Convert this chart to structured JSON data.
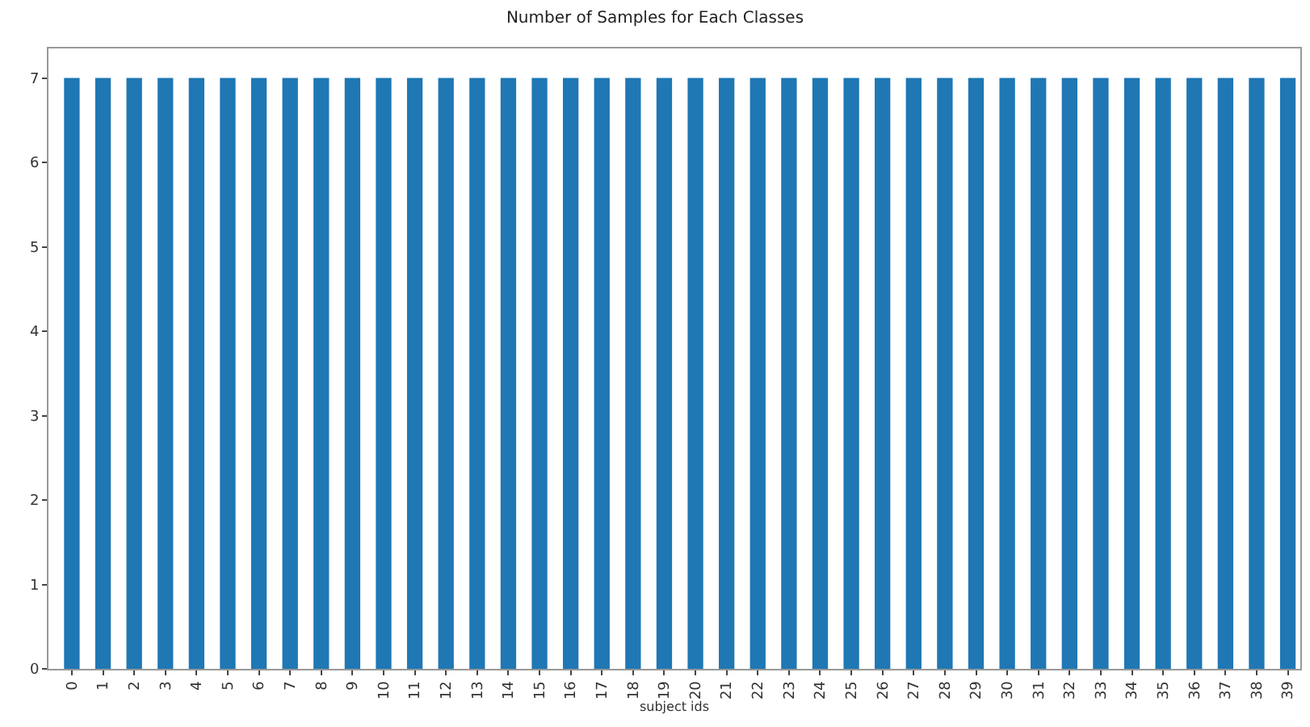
{
  "chart_data": {
    "type": "bar",
    "title": "Number of Samples for Each Classes",
    "xlabel": "subject ids",
    "categories": [
      "0",
      "1",
      "2",
      "3",
      "4",
      "5",
      "6",
      "7",
      "8",
      "9",
      "10",
      "11",
      "12",
      "13",
      "14",
      "15",
      "16",
      "17",
      "18",
      "19",
      "20",
      "21",
      "22",
      "23",
      "24",
      "25",
      "26",
      "27",
      "28",
      "29",
      "30",
      "31",
      "32",
      "33",
      "34",
      "35",
      "36",
      "37",
      "38",
      "39"
    ],
    "values": [
      7,
      7,
      7,
      7,
      7,
      7,
      7,
      7,
      7,
      7,
      7,
      7,
      7,
      7,
      7,
      7,
      7,
      7,
      7,
      7,
      7,
      7,
      7,
      7,
      7,
      7,
      7,
      7,
      7,
      7,
      7,
      7,
      7,
      7,
      7,
      7,
      7,
      7,
      7,
      7
    ],
    "color": "#1f77b4",
    "ylim": [
      0,
      7.35
    ],
    "yticks": [
      0,
      1,
      2,
      3,
      4,
      5,
      6,
      7
    ]
  }
}
